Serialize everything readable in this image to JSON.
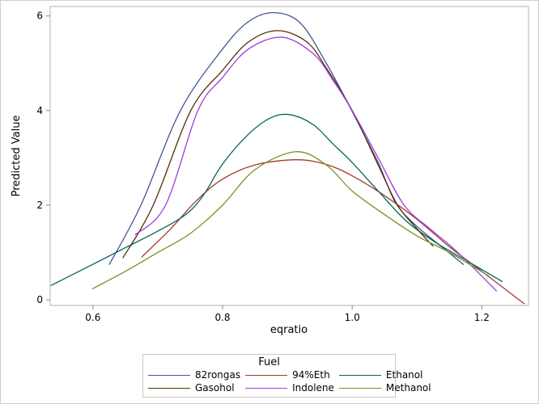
{
  "chart_data": {
    "type": "line",
    "xlabel": "eqratio",
    "ylabel": "Predicted Value",
    "xlim": [
      0.534,
      1.272
    ],
    "ylim": [
      -0.12,
      6.2
    ],
    "xticks": [
      "0.6",
      "0.8",
      "1.0",
      "1.2"
    ],
    "yticks": [
      "0",
      "2",
      "4",
      "6"
    ],
    "grid": false,
    "legend": {
      "title": "Fuel",
      "placement": "bottom"
    },
    "series": [
      {
        "name": "82rongas",
        "color": "#445694",
        "points": [
          [
            0.625,
            0.74
          ],
          [
            0.674,
            2.0
          ],
          [
            0.735,
            4.0
          ],
          [
            0.8,
            5.3
          ],
          [
            0.84,
            5.88
          ],
          [
            0.879,
            6.07
          ],
          [
            0.92,
            5.85
          ],
          [
            0.96,
            5.0
          ],
          [
            1.0,
            3.98
          ],
          [
            1.04,
            2.9
          ],
          [
            1.067,
            2.05
          ],
          [
            1.1,
            1.55
          ],
          [
            1.14,
            1.1
          ],
          [
            1.172,
            0.74
          ]
        ]
      },
      {
        "name": "94%Eth",
        "color": "#a23a2e",
        "points": [
          [
            0.675,
            0.9
          ],
          [
            0.72,
            1.5
          ],
          [
            0.76,
            2.1
          ],
          [
            0.8,
            2.55
          ],
          [
            0.85,
            2.85
          ],
          [
            0.914,
            2.96
          ],
          [
            0.96,
            2.86
          ],
          [
            1.0,
            2.62
          ],
          [
            1.05,
            2.2
          ],
          [
            1.1,
            1.7
          ],
          [
            1.15,
            1.12
          ],
          [
            1.2,
            0.6
          ],
          [
            1.266,
            -0.09
          ]
        ]
      },
      {
        "name": "Ethanol",
        "color": "#01665e",
        "points": [
          [
            0.535,
            0.3
          ],
          [
            0.6,
            0.75
          ],
          [
            0.65,
            1.1
          ],
          [
            0.7,
            1.45
          ],
          [
            0.743,
            1.8
          ],
          [
            0.77,
            2.2
          ],
          [
            0.8,
            2.87
          ],
          [
            0.84,
            3.5
          ],
          [
            0.875,
            3.85
          ],
          [
            0.905,
            3.91
          ],
          [
            0.94,
            3.7
          ],
          [
            0.97,
            3.3
          ],
          [
            1.0,
            2.9
          ],
          [
            1.04,
            2.3
          ],
          [
            1.083,
            1.67
          ],
          [
            1.13,
            1.2
          ],
          [
            1.18,
            0.8
          ],
          [
            1.232,
            0.38
          ]
        ]
      },
      {
        "name": "Gasohol",
        "color": "#543005",
        "points": [
          [
            0.646,
            0.88
          ],
          [
            0.693,
            2.0
          ],
          [
            0.751,
            4.0
          ],
          [
            0.8,
            4.85
          ],
          [
            0.84,
            5.45
          ],
          [
            0.885,
            5.69
          ],
          [
            0.93,
            5.45
          ],
          [
            0.96,
            4.9
          ],
          [
            1.0,
            4.0
          ],
          [
            1.04,
            2.85
          ],
          [
            1.07,
            2.0
          ],
          [
            1.1,
            1.5
          ],
          [
            1.125,
            1.13
          ]
        ]
      },
      {
        "name": "Indolene",
        "color": "#9d3cdb",
        "points": [
          [
            0.665,
            1.37
          ],
          [
            0.712,
            2.0
          ],
          [
            0.762,
            4.0
          ],
          [
            0.8,
            4.7
          ],
          [
            0.84,
            5.3
          ],
          [
            0.892,
            5.55
          ],
          [
            0.94,
            5.2
          ],
          [
            0.97,
            4.65
          ],
          [
            1.0,
            4.0
          ],
          [
            1.04,
            3.0
          ],
          [
            1.08,
            2.0
          ],
          [
            1.12,
            1.5
          ],
          [
            1.163,
            1.0
          ],
          [
            1.223,
            0.18
          ]
        ]
      },
      {
        "name": "Methanol",
        "color": "#7f8e1f",
        "points": [
          [
            0.599,
            0.23
          ],
          [
            0.65,
            0.6
          ],
          [
            0.7,
            1.0
          ],
          [
            0.75,
            1.4
          ],
          [
            0.8,
            2.0
          ],
          [
            0.85,
            2.75
          ],
          [
            0.913,
            3.13
          ],
          [
            0.96,
            2.85
          ],
          [
            1.0,
            2.3
          ],
          [
            1.05,
            1.8
          ],
          [
            1.1,
            1.35
          ],
          [
            1.15,
            1.0
          ],
          [
            1.211,
            0.5
          ]
        ]
      }
    ]
  }
}
